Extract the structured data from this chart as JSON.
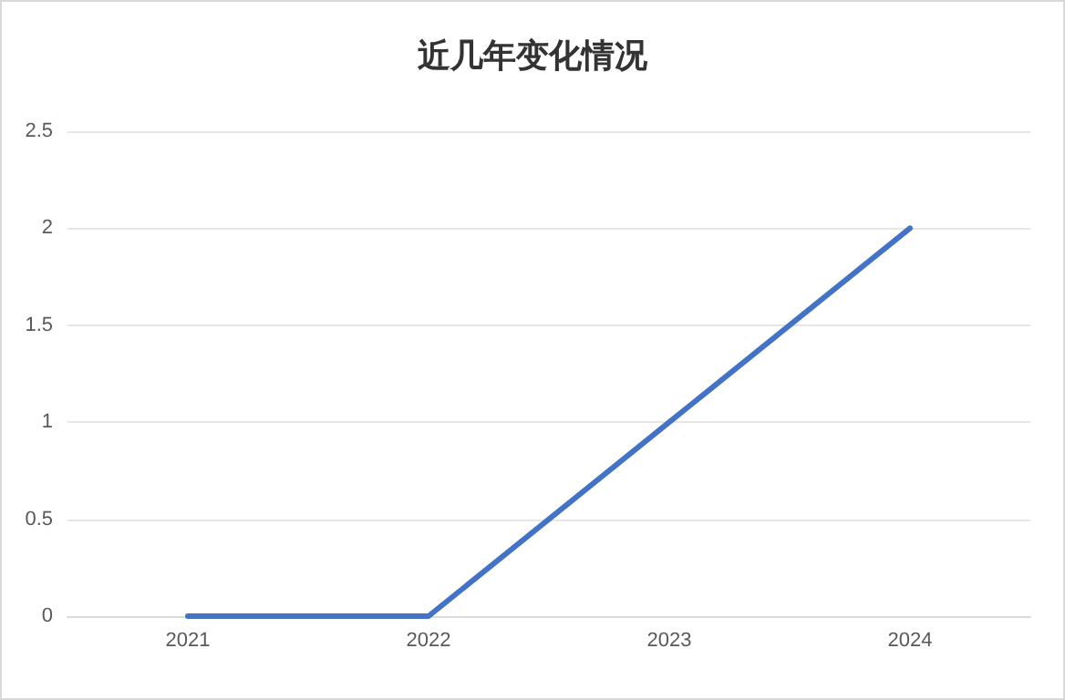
{
  "chart_data": {
    "type": "line",
    "title": "近几年变化情况",
    "categories": [
      "2021",
      "2022",
      "2023",
      "2024"
    ],
    "series": [
      {
        "color": "#4472c4",
        "values": [
          0,
          0,
          1,
          2
        ]
      }
    ],
    "ylim": [
      0,
      2.5
    ],
    "yticks": [
      0,
      0.5,
      1,
      1.5,
      2,
      2.5
    ],
    "grid": "y",
    "marker": "none",
    "line_style": "solid"
  }
}
